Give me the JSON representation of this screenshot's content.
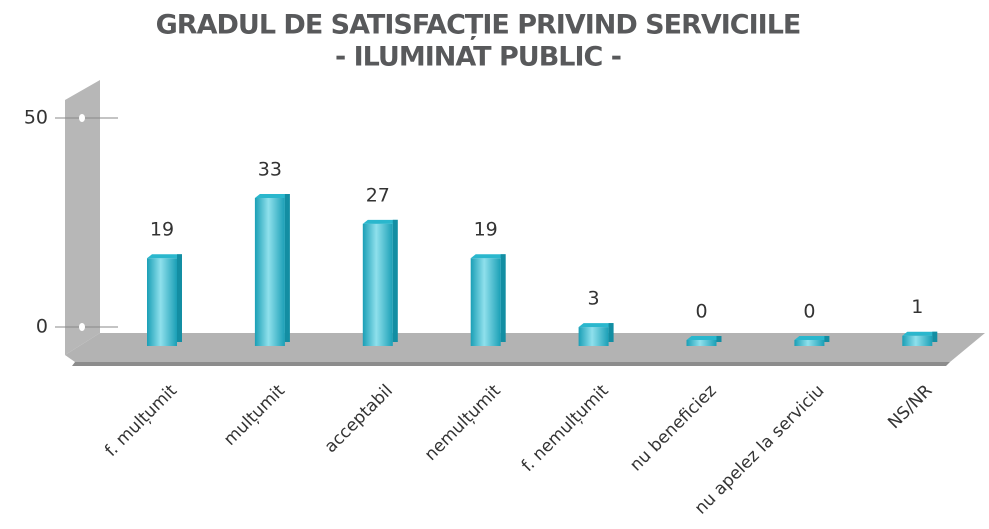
{
  "chart_data": {
    "type": "bar3d",
    "title": "GRADUL DE SATISFACȚIE PRIVIND SERVICIILE",
    "subtitle": "- ILUMINAT PUBLIC -",
    "categories": [
      "f. mulțumit",
      "mulțumit",
      "acceptabil",
      "nemulțumit",
      "f. nemulțumit",
      "nu beneficiez",
      "nu apelez la serviciu",
      "NS/NR"
    ],
    "values": [
      19,
      33,
      27,
      19,
      3,
      0,
      0,
      1
    ],
    "color": "#2ab7cd",
    "ylim": [
      0,
      50
    ],
    "yticks": [
      0,
      50
    ],
    "grid": true
  }
}
